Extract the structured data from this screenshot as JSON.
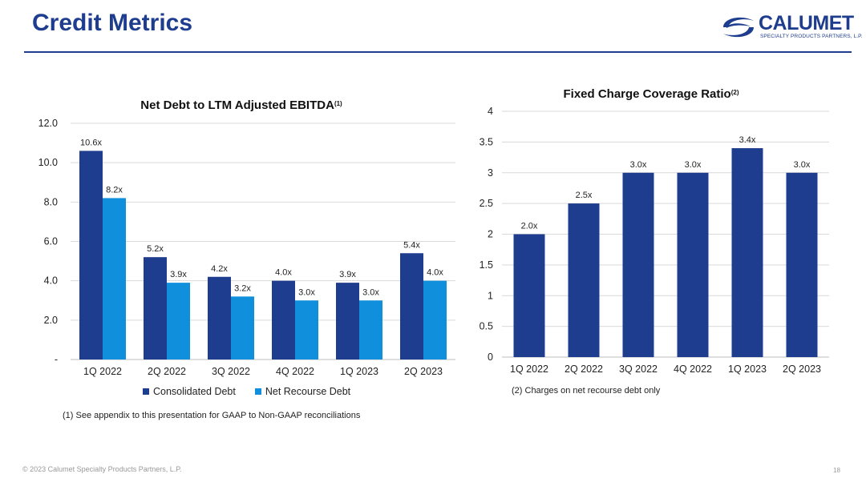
{
  "page": {
    "title": "Credit Metrics",
    "logo_text": "CALUMET",
    "logo_subtext": "SPECIALTY PRODUCTS PARTNERS, L.P.",
    "footer": "© 2023 Calumet Specialty Products Partners, L.P.",
    "page_number": "18"
  },
  "notes": {
    "left": "(1)  See appendix to this presentation for GAAP to Non-GAAP reconciliations",
    "right": "(2) Charges on net recourse debt only"
  },
  "colors": {
    "brand": "#1f3d8f",
    "consolidated": "#1f3d8f",
    "recourse": "#0f8fdc"
  },
  "chart_data": [
    {
      "type": "bar",
      "title": "Net Debt to LTM Adjusted EBITDA",
      "title_sup": "(1)",
      "categories": [
        "1Q 2022",
        "2Q 2022",
        "3Q 2022",
        "4Q 2022",
        "1Q 2023",
        "2Q 2023"
      ],
      "series": [
        {
          "name": "Consolidated Debt",
          "values": [
            10.6,
            5.2,
            4.2,
            4.0,
            3.9,
            5.4
          ],
          "labels": [
            "10.6x",
            "5.2x",
            "4.2x",
            "4.0x",
            "3.9x",
            "5.4x"
          ]
        },
        {
          "name": "Net Recourse Debt",
          "values": [
            8.2,
            3.9,
            3.2,
            3.0,
            3.0,
            4.0
          ],
          "labels": [
            "8.2x",
            "3.9x",
            "3.2x",
            "3.0x",
            "3.0x",
            "4.0x"
          ]
        }
      ],
      "ylim": [
        0,
        12
      ],
      "yticks": [
        "-",
        "2.0",
        "4.0",
        "6.0",
        "8.0",
        "10.0",
        "12.0"
      ],
      "grid": true,
      "legend": "bottom"
    },
    {
      "type": "bar",
      "title": "Fixed Charge Coverage Ratio",
      "title_sup": "(2)",
      "categories": [
        "1Q 2022",
        "2Q 2022",
        "3Q 2022",
        "4Q 2022",
        "1Q 2023",
        "2Q 2023"
      ],
      "series": [
        {
          "values": [
            2.0,
            2.5,
            3.0,
            3.0,
            3.4,
            3.0
          ],
          "labels": [
            "2.0x",
            "2.5x",
            "3.0x",
            "3.0x",
            "3.4x",
            "3.0x"
          ]
        }
      ],
      "ylim": [
        0,
        4
      ],
      "yticks": [
        "0",
        "0.5",
        "1",
        "1.5",
        "2",
        "2.5",
        "3",
        "3.5",
        "4"
      ],
      "grid": true
    }
  ]
}
